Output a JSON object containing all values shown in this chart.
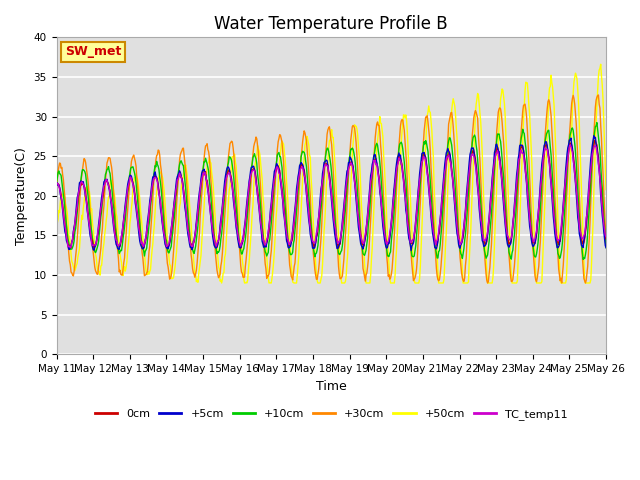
{
  "title": "Water Temperature Profile B",
  "xlabel": "Time",
  "ylabel": "Temperature(C)",
  "ylim": [
    0,
    40
  ],
  "yticks": [
    0,
    5,
    10,
    15,
    20,
    25,
    30,
    35,
    40
  ],
  "series_colors": {
    "0cm": "#cc0000",
    "+5cm": "#0000cc",
    "+10cm": "#00cc00",
    "+30cm": "#ff8800",
    "+50cm": "#ffff00",
    "TC_temp11": "#cc00cc"
  },
  "legend_labels": [
    "0cm",
    "+5cm",
    "+10cm",
    "+30cm",
    "+50cm",
    "TC_temp11"
  ],
  "annotation_text": "SW_met",
  "annotation_color": "#cc0000",
  "annotation_bg": "#ffff99",
  "annotation_border": "#cc8800",
  "background_color": "#e0e0e0",
  "grid_color": "#ffffff",
  "title_fontsize": 12,
  "axis_fontsize": 9,
  "tick_fontsize": 7.5,
  "n_days": 15,
  "points_per_day": 48,
  "start_day": 11
}
